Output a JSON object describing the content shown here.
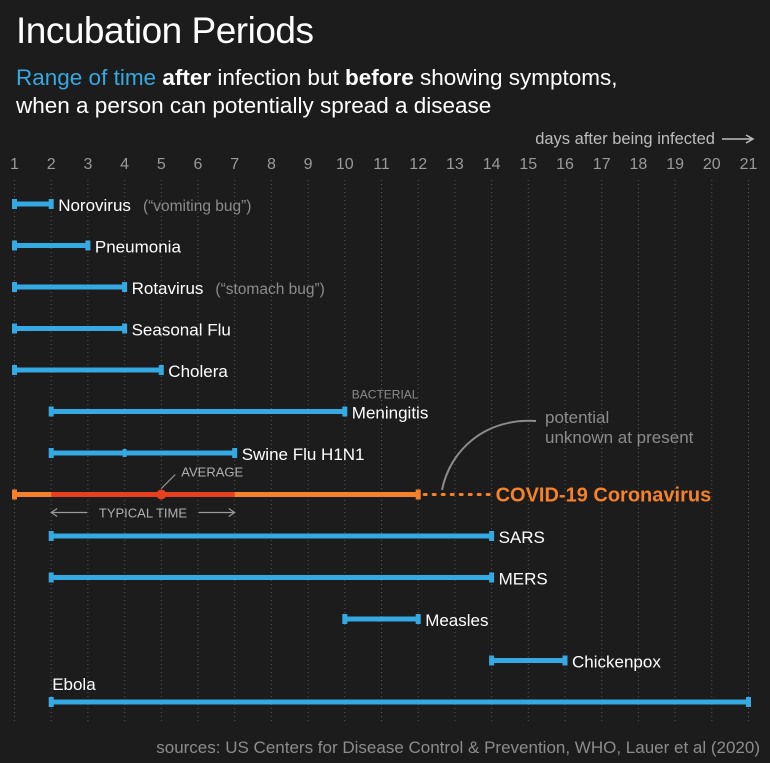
{
  "title": "Incubation Periods",
  "subtitle": {
    "part1": "Range of time",
    "part2": " ",
    "part3": "after",
    "part4": " infection but ",
    "part5": "before",
    "part6": " showing symptoms,",
    "line2": "when a person can potentially spread a disease"
  },
  "source": "sources: US Centers for Disease Control & Prevention, WHO, Lauer et al (2020)",
  "colors": {
    "background": "#1c1c1c",
    "bar": "#35a9e1",
    "covid": "#f5822a",
    "covid_typical": "#e8401f",
    "grid": "#555555",
    "note": "#8c8c8c"
  },
  "chart_data": {
    "type": "range-bar",
    "xlabel": "days after being infected",
    "xlim": [
      1,
      21
    ],
    "ticks": [
      "1",
      "2",
      "3",
      "4",
      "5",
      "6",
      "7",
      "8",
      "9",
      "10",
      "11",
      "12",
      "13",
      "14",
      "15",
      "16",
      "17",
      "18",
      "19",
      "20",
      "21"
    ],
    "series": [
      {
        "label": "Norovirus",
        "note": "(“vomiting bug”)",
        "start": 1,
        "end": 2
      },
      {
        "label": "Pneumonia",
        "start": 1,
        "end": 3
      },
      {
        "label": "Rotavirus",
        "note": "(“stomach bug”)",
        "start": 1,
        "end": 4
      },
      {
        "label": "Seasonal Flu",
        "start": 1,
        "end": 4
      },
      {
        "label": "Cholera",
        "start": 1,
        "end": 5
      },
      {
        "label": "Meningitis",
        "tag": "BACTERIAL",
        "start": 2,
        "end": 10
      },
      {
        "label": "Swine Flu H1N1",
        "start": 2,
        "end": 7,
        "mid_marker": 4
      },
      {
        "label": "COVID-19 Coronavirus",
        "start": 1,
        "end": 12,
        "potential_end": 14,
        "typical_start": 2,
        "typical_end": 7,
        "average": 5,
        "average_label": "AVERAGE",
        "typical_label": "TYPICAL TIME",
        "potential_label_line1": "potential",
        "potential_label_line2": "unknown at present"
      },
      {
        "label": "SARS",
        "start": 2,
        "end": 14
      },
      {
        "label": "MERS",
        "start": 2,
        "end": 14
      },
      {
        "label": "Measles",
        "start": 10,
        "end": 12
      },
      {
        "label": "Chickenpox",
        "start": 14,
        "end": 16
      },
      {
        "label": "Ebola",
        "start": 2,
        "end": 21,
        "label_above": true
      }
    ]
  }
}
